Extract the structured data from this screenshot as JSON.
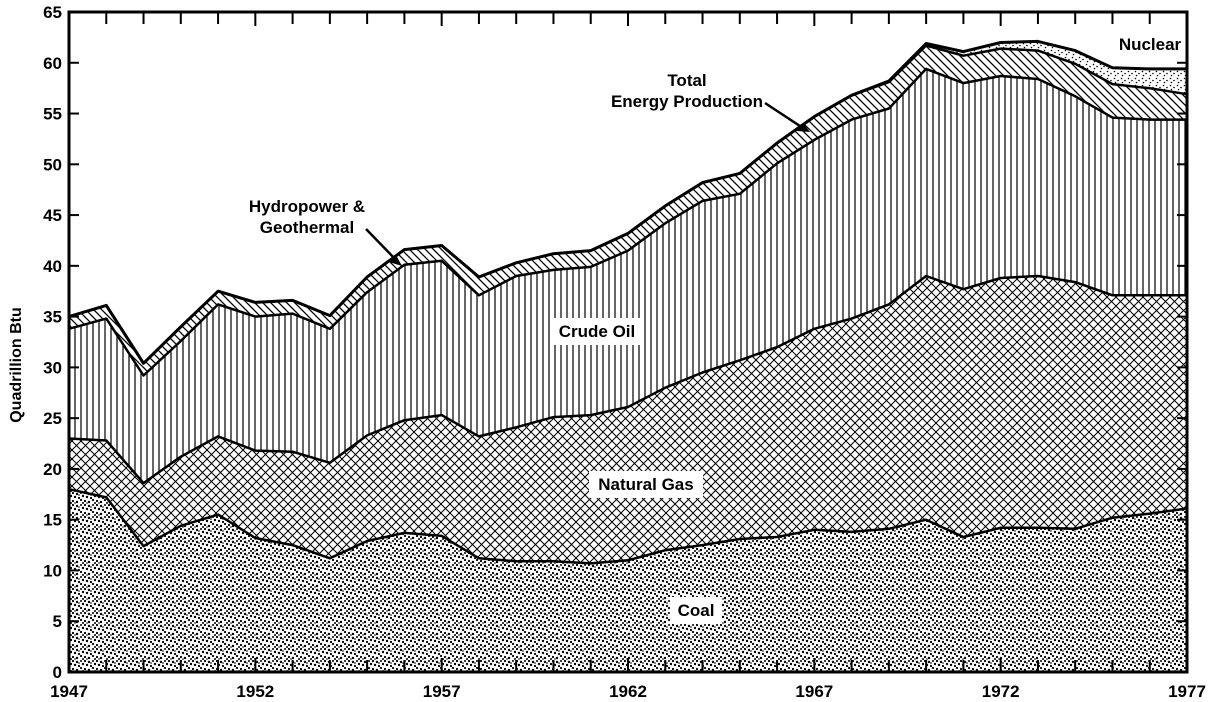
{
  "chart_data": {
    "type": "area",
    "stacked": true,
    "title": "",
    "xlabel": "",
    "ylabel": "Quadrillion Btu",
    "xlim": [
      1947,
      1977
    ],
    "ylim": [
      0,
      65
    ],
    "x_ticks": [
      1947,
      1952,
      1957,
      1962,
      1967,
      1972,
      1977
    ],
    "y_ticks": [
      0,
      5,
      10,
      15,
      20,
      25,
      30,
      35,
      40,
      45,
      50,
      55,
      60,
      65
    ],
    "grid": false,
    "x": [
      1947,
      1948,
      1949,
      1950,
      1951,
      1952,
      1953,
      1954,
      1955,
      1956,
      1957,
      1958,
      1959,
      1960,
      1961,
      1962,
      1963,
      1964,
      1965,
      1966,
      1967,
      1968,
      1969,
      1970,
      1971,
      1972,
      1973,
      1974,
      1975,
      1976,
      1977
    ],
    "series": [
      {
        "name": "Coal",
        "pattern": "stipple-dense",
        "values": [
          18.0,
          17.2,
          12.4,
          14.4,
          15.5,
          13.2,
          12.5,
          11.2,
          12.9,
          13.7,
          13.4,
          11.2,
          10.9,
          10.9,
          10.7,
          11.0,
          12.0,
          12.5,
          13.1,
          13.3,
          14.0,
          13.8,
          14.1,
          15.0,
          13.3,
          14.2,
          14.2,
          14.1,
          15.2,
          15.6,
          16.1
        ]
      },
      {
        "name": "Natural Gas",
        "pattern": "crosshatch",
        "values": [
          5.0,
          5.6,
          6.2,
          6.8,
          7.7,
          8.6,
          9.2,
          9.4,
          10.4,
          11.1,
          11.9,
          12.0,
          13.2,
          14.2,
          14.6,
          15.1,
          16.0,
          17.0,
          17.6,
          18.7,
          19.8,
          21.0,
          22.1,
          24.0,
          24.4,
          24.6,
          24.8,
          24.3,
          21.9,
          21.5,
          21.0
        ]
      },
      {
        "name": "Crude Oil",
        "pattern": "vertical-lines",
        "values": [
          10.8,
          12.0,
          10.6,
          11.4,
          13.0,
          13.2,
          13.6,
          13.2,
          14.1,
          15.3,
          15.2,
          13.9,
          14.9,
          14.5,
          14.6,
          15.4,
          16.2,
          16.9,
          16.4,
          18.1,
          18.6,
          19.6,
          19.3,
          20.4,
          20.3,
          19.9,
          19.4,
          18.3,
          17.5,
          17.3,
          17.3
        ]
      },
      {
        "name": "Hydropower & Geothermal",
        "pattern": "diagonal-lines",
        "values": [
          1.2,
          1.3,
          1.2,
          1.4,
          1.3,
          1.4,
          1.3,
          1.3,
          1.5,
          1.5,
          1.5,
          1.8,
          1.3,
          1.6,
          1.6,
          1.7,
          1.7,
          1.8,
          2.0,
          2.0,
          2.3,
          2.4,
          2.6,
          2.3,
          2.7,
          2.7,
          2.8,
          3.2,
          3.3,
          3.1,
          2.5
        ]
      },
      {
        "name": "Nuclear",
        "pattern": "stipple-light",
        "values": [
          0,
          0,
          0,
          0,
          0,
          0,
          0,
          0,
          0,
          0,
          0,
          0,
          0,
          0,
          0,
          0,
          0,
          0,
          0,
          0,
          0,
          0,
          0.1,
          0.2,
          0.4,
          0.6,
          0.9,
          1.3,
          1.6,
          1.9,
          2.5
        ]
      }
    ],
    "total_series": {
      "name": "Total Energy Production"
    },
    "annotations": {
      "total_line1": "Total",
      "total_line2": "Energy Production",
      "hydro_line1": "Hydropower &",
      "hydro_line2": "Geothermal",
      "nuclear": "Nuclear",
      "crude_oil": "Crude Oil",
      "natural_gas": "Natural Gas",
      "coal": "Coal"
    },
    "colors": {
      "ink": "#000000",
      "paper": "#ffffff"
    }
  }
}
